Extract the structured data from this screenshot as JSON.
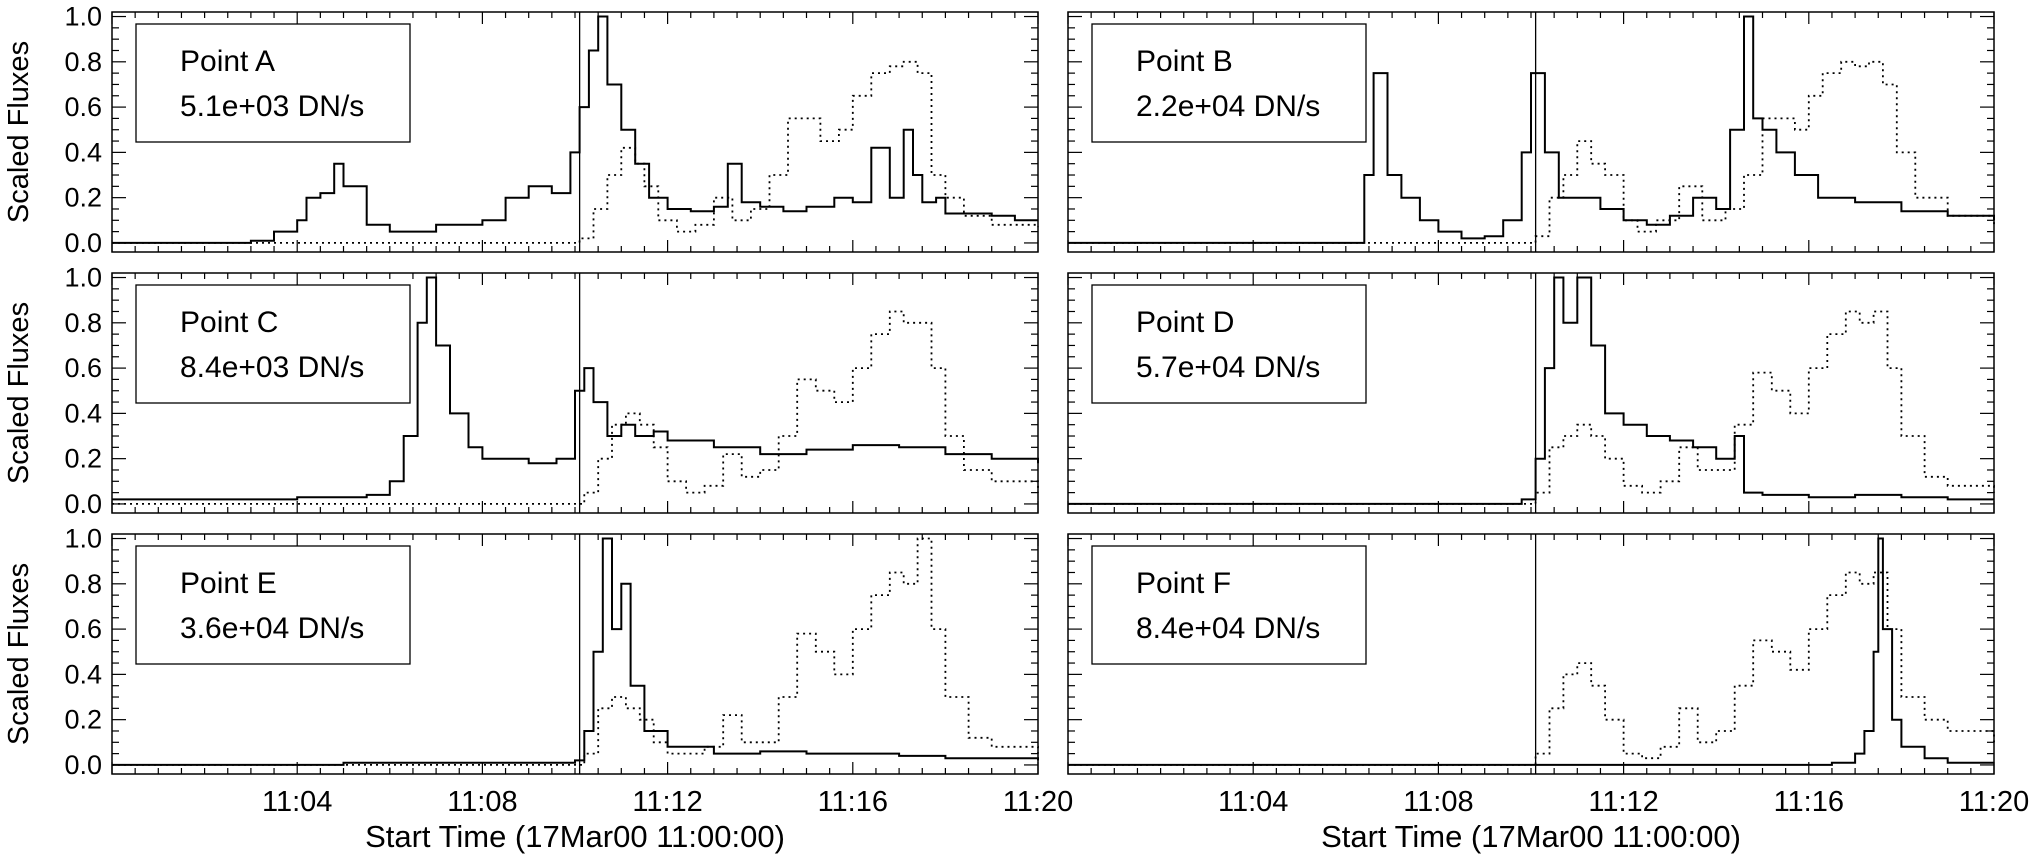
{
  "figure": {
    "x_label": "Start Time (17Mar00 11:00:00)",
    "y_label": "Scaled Fluxes"
  },
  "chart_data": [
    {
      "type": "line",
      "panel": "Point A",
      "legend": [
        "Point A",
        "5.1e+03 DN/s"
      ],
      "ylabel": "Scaled Fluxes",
      "xlabel": "",
      "xlim": [
        0,
        20
      ],
      "ylim": [
        -0.04,
        1.02
      ],
      "yticks": [
        "0.0",
        "0.2",
        "0.4",
        "0.6",
        "0.8",
        "1.0"
      ],
      "xticks": [
        "11:04",
        "11:08",
        "11:12",
        "11:16",
        "11:20"
      ],
      "xtick_values": [
        4,
        8,
        12,
        16,
        20
      ],
      "vline": 10.1,
      "series": [
        {
          "style": "solid",
          "x": [
            0,
            2,
            3,
            3.5,
            4.0,
            4.2,
            4.5,
            4.8,
            5.0,
            5.5,
            6.0,
            7,
            8,
            8.5,
            9.0,
            9.5,
            9.9,
            10.1,
            10.3,
            10.5,
            10.7,
            11.0,
            11.3,
            11.6,
            12,
            12.5,
            13.0,
            13.3,
            13.6,
            14,
            14.5,
            15,
            15.6,
            16.0,
            16.4,
            16.8,
            17.1,
            17.3,
            17.5,
            17.8,
            18,
            18.5,
            19,
            19.5,
            20
          ],
          "y": [
            0.0,
            0.0,
            0.01,
            0.05,
            0.1,
            0.2,
            0.22,
            0.35,
            0.25,
            0.08,
            0.05,
            0.08,
            0.1,
            0.2,
            0.25,
            0.22,
            0.4,
            0.6,
            0.85,
            1.0,
            0.7,
            0.5,
            0.35,
            0.2,
            0.15,
            0.14,
            0.16,
            0.35,
            0.18,
            0.16,
            0.14,
            0.16,
            0.2,
            0.18,
            0.42,
            0.2,
            0.5,
            0.3,
            0.18,
            0.2,
            0.13,
            0.13,
            0.12,
            0.1,
            0.1
          ]
        },
        {
          "style": "dotted",
          "x": [
            0,
            9.8,
            10.1,
            10.4,
            10.7,
            11.0,
            11.3,
            11.5,
            11.8,
            12.2,
            12.6,
            13.0,
            13.4,
            13.8,
            14.2,
            14.6,
            14.9,
            15.3,
            15.7,
            16.0,
            16.4,
            16.8,
            17.1,
            17.4,
            17.7,
            18.0,
            18.4,
            19,
            20
          ],
          "y": [
            0.0,
            0.0,
            0.02,
            0.15,
            0.3,
            0.42,
            0.35,
            0.25,
            0.1,
            0.05,
            0.08,
            0.2,
            0.1,
            0.15,
            0.3,
            0.55,
            0.55,
            0.45,
            0.5,
            0.65,
            0.75,
            0.78,
            0.8,
            0.75,
            0.3,
            0.2,
            0.12,
            0.08,
            0.07
          ]
        }
      ]
    },
    {
      "type": "line",
      "panel": "Point B",
      "legend": [
        "Point B",
        "2.2e+04 DN/s"
      ],
      "ylabel": "",
      "xlabel": "",
      "xlim": [
        0,
        20
      ],
      "ylim": [
        -0.04,
        1.02
      ],
      "yticks": [],
      "xticks": [
        "11:04",
        "11:08",
        "11:12",
        "11:16",
        "11:20"
      ],
      "xtick_values": [
        4,
        8,
        12,
        16,
        20
      ],
      "vline": 10.1,
      "series": [
        {
          "style": "solid",
          "x": [
            0,
            6,
            6.4,
            6.6,
            6.9,
            7.2,
            7.6,
            8,
            8.5,
            9.0,
            9.4,
            9.8,
            10.0,
            10.3,
            10.6,
            11.0,
            11.5,
            12.0,
            12.5,
            13.0,
            13.5,
            14.0,
            14.3,
            14.6,
            14.8,
            15.0,
            15.3,
            15.7,
            16.2,
            17,
            18,
            19,
            20
          ],
          "y": [
            0.0,
            0.0,
            0.3,
            0.75,
            0.3,
            0.2,
            0.1,
            0.05,
            0.02,
            0.03,
            0.1,
            0.4,
            0.75,
            0.4,
            0.2,
            0.2,
            0.15,
            0.1,
            0.08,
            0.12,
            0.2,
            0.15,
            0.5,
            1.0,
            0.55,
            0.5,
            0.4,
            0.3,
            0.2,
            0.18,
            0.14,
            0.12,
            0.1
          ]
        },
        {
          "style": "dotted",
          "x": [
            0,
            9.8,
            10.1,
            10.4,
            10.7,
            11.0,
            11.3,
            11.6,
            12.0,
            12.3,
            12.7,
            13.2,
            13.7,
            14.2,
            14.6,
            15.0,
            15.4,
            15.7,
            16.0,
            16.3,
            16.7,
            17.0,
            17.3,
            17.6,
            17.9,
            18.3,
            19,
            20
          ],
          "y": [
            0.0,
            0.0,
            0.03,
            0.2,
            0.3,
            0.45,
            0.35,
            0.3,
            0.1,
            0.05,
            0.1,
            0.25,
            0.1,
            0.15,
            0.3,
            0.55,
            0.55,
            0.5,
            0.65,
            0.75,
            0.8,
            0.78,
            0.8,
            0.7,
            0.4,
            0.2,
            0.12,
            0.08
          ]
        }
      ]
    },
    {
      "type": "line",
      "panel": "Point C",
      "legend": [
        "Point C",
        "8.4e+03 DN/s"
      ],
      "ylabel": "Scaled Fluxes",
      "xlabel": "",
      "xlim": [
        0,
        20
      ],
      "ylim": [
        -0.04,
        1.02
      ],
      "yticks": [
        "0.0",
        "0.2",
        "0.4",
        "0.6",
        "0.8",
        "1.0"
      ],
      "xticks": [
        "11:04",
        "11:08",
        "11:12",
        "11:16",
        "11:20"
      ],
      "xtick_values": [
        4,
        8,
        12,
        16,
        20
      ],
      "vline": 10.1,
      "series": [
        {
          "style": "solid",
          "x": [
            0,
            2,
            4,
            5.5,
            6.0,
            6.3,
            6.6,
            6.8,
            7.0,
            7.3,
            7.7,
            8,
            9,
            9.6,
            10.0,
            10.2,
            10.4,
            10.7,
            11.0,
            11.3,
            11.7,
            12,
            13,
            14,
            15,
            16,
            17,
            18,
            19,
            20
          ],
          "y": [
            0.02,
            0.02,
            0.03,
            0.04,
            0.1,
            0.3,
            0.8,
            1.0,
            0.7,
            0.4,
            0.25,
            0.2,
            0.18,
            0.2,
            0.5,
            0.6,
            0.45,
            0.3,
            0.35,
            0.3,
            0.32,
            0.28,
            0.25,
            0.22,
            0.24,
            0.26,
            0.25,
            0.22,
            0.2,
            0.18
          ]
        },
        {
          "style": "dotted",
          "x": [
            0,
            9.8,
            10.2,
            10.5,
            10.8,
            11.1,
            11.4,
            11.7,
            12.0,
            12.4,
            12.8,
            13.2,
            13.6,
            14.0,
            14.4,
            14.8,
            15.2,
            15.6,
            16.0,
            16.4,
            16.8,
            17.1,
            17.4,
            17.7,
            18.0,
            18.4,
            19,
            20
          ],
          "y": [
            0.0,
            0.0,
            0.05,
            0.2,
            0.35,
            0.4,
            0.35,
            0.25,
            0.1,
            0.05,
            0.08,
            0.22,
            0.12,
            0.15,
            0.3,
            0.55,
            0.5,
            0.45,
            0.6,
            0.75,
            0.85,
            0.8,
            0.8,
            0.6,
            0.3,
            0.15,
            0.1,
            0.05
          ]
        }
      ]
    },
    {
      "type": "line",
      "panel": "Point D",
      "legend": [
        "Point D",
        "5.7e+04 DN/s"
      ],
      "ylabel": "",
      "xlabel": "",
      "xlim": [
        0,
        20
      ],
      "ylim": [
        -0.04,
        1.02
      ],
      "yticks": [],
      "xticks": [
        "11:04",
        "11:08",
        "11:12",
        "11:16",
        "11:20"
      ],
      "xtick_values": [
        4,
        8,
        12,
        16,
        20
      ],
      "vline": 10.1,
      "series": [
        {
          "style": "solid",
          "x": [
            0,
            9,
            9.8,
            10.1,
            10.3,
            10.5,
            10.7,
            11.0,
            11.3,
            11.6,
            12.0,
            12.5,
            13.0,
            13.5,
            14.0,
            14.4,
            14.6,
            15,
            16,
            17,
            18,
            19,
            20
          ],
          "y": [
            0.0,
            0.0,
            0.02,
            0.2,
            0.6,
            1.0,
            0.8,
            1.0,
            0.7,
            0.4,
            0.35,
            0.3,
            0.28,
            0.25,
            0.2,
            0.3,
            0.05,
            0.04,
            0.03,
            0.04,
            0.03,
            0.02,
            0.02
          ]
        },
        {
          "style": "dotted",
          "x": [
            0,
            9.8,
            10.1,
            10.4,
            10.7,
            11.0,
            11.3,
            11.6,
            12.0,
            12.4,
            12.8,
            13.2,
            13.6,
            14.0,
            14.4,
            14.8,
            15.2,
            15.6,
            16.0,
            16.4,
            16.8,
            17.1,
            17.4,
            17.7,
            18.0,
            18.5,
            19,
            20
          ],
          "y": [
            0.0,
            0.0,
            0.05,
            0.25,
            0.3,
            0.35,
            0.3,
            0.2,
            0.08,
            0.05,
            0.1,
            0.25,
            0.15,
            0.15,
            0.35,
            0.58,
            0.5,
            0.4,
            0.6,
            0.75,
            0.85,
            0.8,
            0.85,
            0.6,
            0.3,
            0.12,
            0.08,
            0.05
          ]
        }
      ]
    },
    {
      "type": "line",
      "panel": "Point E",
      "legend": [
        "Point E",
        "3.6e+04 DN/s"
      ],
      "ylabel": "Scaled Fluxes",
      "xlabel": "Start Time (17Mar00 11:00:00)",
      "xlim": [
        0,
        20
      ],
      "ylim": [
        -0.04,
        1.02
      ],
      "yticks": [
        "0.0",
        "0.2",
        "0.4",
        "0.6",
        "0.8",
        "1.0"
      ],
      "xticks": [
        "11:04",
        "11:08",
        "11:12",
        "11:16",
        "11:20"
      ],
      "xtick_values": [
        4,
        8,
        12,
        16,
        20
      ],
      "vline": 10.1,
      "series": [
        {
          "style": "solid",
          "x": [
            0,
            5,
            9.5,
            10.0,
            10.2,
            10.4,
            10.6,
            10.8,
            11.0,
            11.2,
            11.5,
            12.0,
            13,
            14,
            15,
            16,
            17,
            18,
            19,
            20
          ],
          "y": [
            0.0,
            0.01,
            0.01,
            0.02,
            0.15,
            0.5,
            1.0,
            0.6,
            0.8,
            0.35,
            0.15,
            0.08,
            0.05,
            0.06,
            0.05,
            0.05,
            0.04,
            0.03,
            0.03,
            0.02
          ]
        },
        {
          "style": "dotted",
          "x": [
            0,
            9.9,
            10.2,
            10.5,
            10.8,
            11.1,
            11.4,
            11.7,
            12.0,
            12.4,
            12.8,
            13.2,
            13.6,
            14.0,
            14.4,
            14.8,
            15.2,
            15.6,
            16.0,
            16.4,
            16.8,
            17.1,
            17.4,
            17.7,
            18.0,
            18.5,
            19,
            20
          ],
          "y": [
            0.0,
            0.0,
            0.05,
            0.25,
            0.3,
            0.25,
            0.2,
            0.1,
            0.05,
            0.05,
            0.08,
            0.22,
            0.1,
            0.1,
            0.3,
            0.58,
            0.5,
            0.4,
            0.6,
            0.75,
            0.85,
            0.8,
            1.0,
            0.6,
            0.3,
            0.12,
            0.08,
            0.05
          ]
        }
      ]
    },
    {
      "type": "line",
      "panel": "Point F",
      "legend": [
        "Point F",
        "8.4e+04 DN/s"
      ],
      "ylabel": "",
      "xlabel": "Start Time (17Mar00 11:00:00)",
      "xlim": [
        0,
        20
      ],
      "ylim": [
        -0.04,
        1.02
      ],
      "yticks": [],
      "xticks": [
        "11:04",
        "11:08",
        "11:12",
        "11:16",
        "11:20"
      ],
      "xtick_values": [
        4,
        8,
        12,
        16,
        20
      ],
      "vline": 10.1,
      "series": [
        {
          "style": "solid",
          "x": [
            0,
            10,
            15,
            16.5,
            17.0,
            17.2,
            17.4,
            17.5,
            17.6,
            17.8,
            18.0,
            18.5,
            19,
            20
          ],
          "y": [
            0.0,
            0.0,
            0.0,
            0.01,
            0.05,
            0.15,
            0.5,
            1.0,
            0.6,
            0.2,
            0.08,
            0.03,
            0.01,
            0.01
          ]
        },
        {
          "style": "dotted",
          "x": [
            0,
            9.8,
            10.1,
            10.4,
            10.7,
            11.0,
            11.3,
            11.6,
            12.0,
            12.4,
            12.8,
            13.2,
            13.6,
            14.0,
            14.4,
            14.8,
            15.2,
            15.6,
            16.0,
            16.4,
            16.8,
            17.1,
            17.4,
            17.7,
            18.0,
            18.5,
            19,
            20
          ],
          "y": [
            0.0,
            0.0,
            0.05,
            0.25,
            0.4,
            0.45,
            0.35,
            0.2,
            0.05,
            0.03,
            0.08,
            0.25,
            0.1,
            0.15,
            0.35,
            0.55,
            0.5,
            0.42,
            0.6,
            0.75,
            0.85,
            0.8,
            0.85,
            0.6,
            0.3,
            0.2,
            0.15,
            0.1
          ]
        }
      ]
    }
  ]
}
